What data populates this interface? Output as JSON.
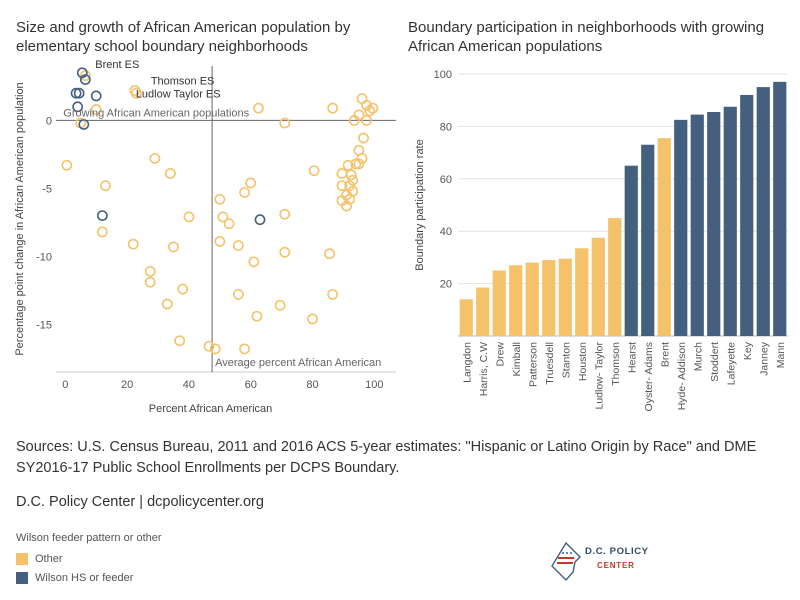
{
  "colors": {
    "other": "#f4c26b",
    "wilson": "#45607f",
    "axis": "#999999",
    "text": "#333333"
  },
  "chart_data": [
    {
      "type": "scatter",
      "title": "Size and growth of African American population by elementary school boundary neighborhoods",
      "xlabel": "Percent African American",
      "ylabel": "Percentage point change in African American population",
      "xlim": [
        -3,
        107
      ],
      "ylim": [
        -18.5,
        4
      ],
      "xticks": [
        0,
        20,
        40,
        60,
        80,
        100
      ],
      "yticks": [
        0,
        -5,
        -10,
        -15
      ],
      "reference_lines": {
        "vertical": {
          "x": 47.5,
          "label": "Average percent African American"
        },
        "horizontal": {
          "y": 0,
          "label": "Growing African American populations"
        }
      },
      "annotations": [
        {
          "text": "Brent ES",
          "x": 5.5,
          "y": 3.5
        },
        {
          "text": "Thomson ES",
          "x": 22.5,
          "y": 2.2
        },
        {
          "text": "Ludlow Taylor ES",
          "x": 22.5,
          "y": 2.2
        }
      ],
      "series": [
        {
          "name": "Wilson HS or feeder",
          "points": [
            [
              5.5,
              3.5
            ],
            [
              6.5,
              3.0
            ],
            [
              3.5,
              2.0
            ],
            [
              4.5,
              2.0
            ],
            [
              10,
              1.8
            ],
            [
              4,
              1.0
            ],
            [
              6,
              -0.3
            ],
            [
              12,
              -7.0
            ],
            [
              63,
              -7.3
            ]
          ]
        },
        {
          "name": "Other",
          "points": [
            [
              6.5,
              3.3
            ],
            [
              22.5,
              2.2
            ],
            [
              23,
              2.0
            ],
            [
              62.5,
              0.9
            ],
            [
              10,
              0.8
            ],
            [
              5,
              -0.2
            ],
            [
              71,
              -0.2
            ],
            [
              86.5,
              0.9
            ],
            [
              96,
              1.6
            ],
            [
              97.5,
              1.1
            ],
            [
              99.5,
              0.9
            ],
            [
              98.5,
              0.7
            ],
            [
              95,
              0.4
            ],
            [
              97.5,
              0.0
            ],
            [
              93.5,
              0.0
            ],
            [
              96.5,
              -1.3
            ],
            [
              95,
              -2.2
            ],
            [
              96,
              -2.8
            ],
            [
              95,
              -3.2
            ],
            [
              94,
              -3.2
            ],
            [
              91.5,
              -3.3
            ],
            [
              92.5,
              -4.0
            ],
            [
              93,
              -4.4
            ],
            [
              89.5,
              -3.9
            ],
            [
              92,
              -4.8
            ],
            [
              89.5,
              -4.8
            ],
            [
              93,
              -5.2
            ],
            [
              91,
              -5.5
            ],
            [
              92,
              -5.8
            ],
            [
              89.5,
              -5.9
            ],
            [
              91,
              -6.3
            ],
            [
              0.5,
              -3.3
            ],
            [
              13,
              -4.8
            ],
            [
              29,
              -2.8
            ],
            [
              34,
              -3.9
            ],
            [
              80.5,
              -3.7
            ],
            [
              60,
              -4.6
            ],
            [
              58,
              -5.3
            ],
            [
              50,
              -5.8
            ],
            [
              51,
              -7.1
            ],
            [
              53,
              -7.6
            ],
            [
              40,
              -7.1
            ],
            [
              71,
              -6.9
            ],
            [
              12,
              -8.2
            ],
            [
              22,
              -9.1
            ],
            [
              35,
              -9.3
            ],
            [
              50,
              -8.9
            ],
            [
              56,
              -9.2
            ],
            [
              71,
              -9.7
            ],
            [
              61,
              -10.4
            ],
            [
              85.5,
              -9.8
            ],
            [
              27.5,
              -11.1
            ],
            [
              27.5,
              -11.9
            ],
            [
              38,
              -12.4
            ],
            [
              56,
              -12.8
            ],
            [
              86.5,
              -12.8
            ],
            [
              33,
              -13.5
            ],
            [
              69.5,
              -13.6
            ],
            [
              62,
              -14.4
            ],
            [
              80,
              -14.6
            ],
            [
              37,
              -16.2
            ],
            [
              46.5,
              -16.6
            ],
            [
              48.5,
              -16.8
            ],
            [
              58,
              -16.8
            ]
          ]
        }
      ]
    },
    {
      "type": "bar",
      "title": "Boundary participation in neighborhoods with growing African American populations",
      "xlabel": "",
      "ylabel": "Boundary participation rate",
      "ylim": [
        0,
        100
      ],
      "yticks": [
        20,
        40,
        60,
        80,
        100
      ],
      "categories": [
        "Langdon",
        "Harris, C.W",
        "Drew",
        "Kimball",
        "Patterson",
        "Truesdell",
        "Stanton",
        "Houston",
        "Ludlow- Taylor",
        "Thomson",
        "Hearst",
        "Oyster- Adams",
        "Brent",
        "Hyde- Addison",
        "Murch",
        "Stoddert",
        "Lafeyette",
        "Key",
        "Janney",
        "Mann"
      ],
      "values": [
        14,
        18.5,
        25,
        27,
        28,
        29,
        29.5,
        33.5,
        37.5,
        45,
        65,
        73,
        75.5,
        82.5,
        84.5,
        85.5,
        87.5,
        92,
        95,
        97
      ],
      "groups": [
        "Other",
        "Other",
        "Other",
        "Other",
        "Other",
        "Other",
        "Other",
        "Other",
        "Other",
        "Other",
        "Wilson HS or feeder",
        "Wilson HS or feeder",
        "Other",
        "Wilson HS or feeder",
        "Wilson HS or feeder",
        "Wilson HS or feeder",
        "Wilson HS or feeder",
        "Wilson HS or feeder",
        "Wilson HS or feeder",
        "Wilson HS or feeder"
      ]
    }
  ],
  "sources": "Sources: U.S. Census Bureau, 2011 and 2016 ACS 5-year estimates: \"Hispanic or Latino Origin by Race\" and DME SY2016-17 Public School Enrollments per DCPS Boundary.",
  "credit": "D.C. Policy Center | dcpolicycenter.org",
  "legend": {
    "title": "Wilson feeder pattern or other",
    "items": [
      {
        "label": "Other"
      },
      {
        "label": "Wilson HS or feeder"
      }
    ]
  },
  "logo": {
    "line1": "D.C. POLICY",
    "line2": "CENTER"
  }
}
